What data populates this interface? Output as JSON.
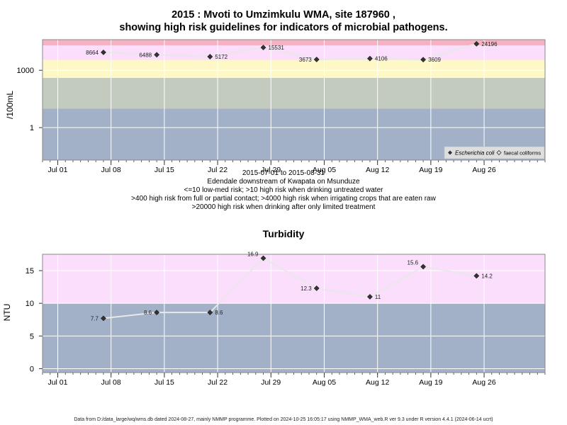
{
  "chart_data": [
    {
      "type": "line",
      "title_line1": "2015 : Mvoti to Umzimkulu WMA, site 187960 ,",
      "title_line2": "showing high risk guidelines for indicators of microbial pathogens.",
      "ylabel": "/100mL",
      "yscale": "log10",
      "yticks": [
        {
          "value": 1,
          "label": "1"
        },
        {
          "value": 1000,
          "label": "1000"
        }
      ],
      "ylim": [
        0.02,
        40000
      ],
      "xlim": [
        "2015-06-29",
        "2015-09-03"
      ],
      "xticks": [
        {
          "date": "2015-07-01",
          "label": "Jul 01"
        },
        {
          "date": "2015-07-08",
          "label": "Jul 08"
        },
        {
          "date": "2015-07-15",
          "label": "Jul 15"
        },
        {
          "date": "2015-07-22",
          "label": "Jul 22"
        },
        {
          "date": "2015-07-29",
          "label": "Jul 29"
        },
        {
          "date": "2015-08-05",
          "label": "Aug 05"
        },
        {
          "date": "2015-08-12",
          "label": "Aug 12"
        },
        {
          "date": "2015-08-19",
          "label": "Aug 19"
        },
        {
          "date": "2015-08-26",
          "label": "Aug 26"
        }
      ],
      "bands": [
        {
          "from": 0.02,
          "to": 10,
          "color": "#a2b1c8"
        },
        {
          "from": 10,
          "to": 400,
          "color": "#c2cbbe"
        },
        {
          "from": 400,
          "to": 3500,
          "color": "#fdf8c6"
        },
        {
          "from": 3500,
          "to": 20000,
          "color": "#fbddfc"
        },
        {
          "from": 20000,
          "to": 40000,
          "color": "#f8b1c3"
        }
      ],
      "series": [
        {
          "name": "Escherichia coli",
          "points": [
            {
              "x": "2015-07-07",
              "y": 8664,
              "label": "8664"
            },
            {
              "x": "2015-07-14",
              "y": 6488,
              "label": "6488"
            },
            {
              "x": "2015-07-21",
              "y": 5172,
              "label": "5172"
            },
            {
              "x": "2015-07-28",
              "y": 15531,
              "label": "15531"
            },
            {
              "x": "2015-08-04",
              "y": 3673,
              "label": "3673"
            },
            {
              "x": "2015-08-11",
              "y": 4106,
              "label": "4106"
            },
            {
              "x": "2015-08-18",
              "y": 3609,
              "label": "3609"
            },
            {
              "x": "2015-08-25",
              "y": 24196,
              "label": "24196"
            }
          ]
        }
      ],
      "legend": {
        "position": "bottom-right",
        "items": [
          "Escherichia coli",
          "faecal coliforms"
        ]
      },
      "subtitle_lines": [
        "2015-07-01 to 2015-08-31",
        "Edendale downstream of Kwapata on Msunduze",
        "<=10 low-med risk; >10 high risk when drinking untreated water",
        ">400 high risk from full or partial contact; >4000 high risk when irrigating crops that are eaten raw",
        ">20000 high risk when drinking after only limited treatment"
      ]
    },
    {
      "type": "line",
      "title": "Turbidity",
      "ylabel": "NTU",
      "ylim": [
        -0.6,
        17.5
      ],
      "yticks": [
        {
          "value": 0,
          "label": "0"
        },
        {
          "value": 5,
          "label": "5"
        },
        {
          "value": 10,
          "label": "10"
        },
        {
          "value": 15,
          "label": "15"
        }
      ],
      "xlim": [
        "2015-06-29",
        "2015-09-03"
      ],
      "bands": [
        {
          "from": -0.6,
          "to": 10,
          "color": "#a2b1c8"
        },
        {
          "from": 10,
          "to": 17.5,
          "color": "#fbddfc"
        }
      ],
      "series": [
        {
          "name": "Turbidity",
          "points": [
            {
              "x": "2015-07-07",
              "y": 7.7,
              "label": "7.7"
            },
            {
              "x": "2015-07-14",
              "y": 8.6,
              "label": "8.6"
            },
            {
              "x": "2015-07-21",
              "y": 8.6,
              "label": "8.6"
            },
            {
              "x": "2015-07-28",
              "y": 16.9,
              "label": "16.9"
            },
            {
              "x": "2015-08-04",
              "y": 12.3,
              "label": "12.3"
            },
            {
              "x": "2015-08-11",
              "y": 11,
              "label": "11"
            },
            {
              "x": "2015-08-18",
              "y": 15.6,
              "label": "15.6"
            },
            {
              "x": "2015-08-25",
              "y": 14.2,
              "label": "14.2"
            }
          ]
        }
      ]
    }
  ],
  "footer": "Data from D:/data_large/wq/wms.db dated 2024-08-27, mainly NMMP programme. Plotted on 2024-10-25 16:05:17 using NMMP_WMA_web.R ver 9.3 under R version 4.4.1 (2024-06-14 ucrt)"
}
